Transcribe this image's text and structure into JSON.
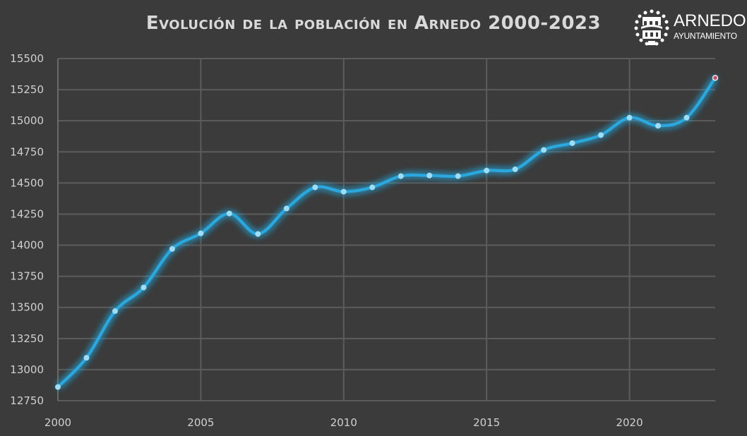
{
  "chart_data": {
    "type": "line",
    "title": "Evolución de la población en Arnedo 2000-2023",
    "xlabel": "",
    "ylabel": "",
    "x": [
      2000,
      2001,
      2002,
      2003,
      2004,
      2005,
      2006,
      2007,
      2008,
      2009,
      2010,
      2011,
      2012,
      2013,
      2014,
      2015,
      2016,
      2017,
      2018,
      2019,
      2020,
      2021,
      2022,
      2023
    ],
    "series": [
      {
        "values": [
          12860,
          13095,
          13470,
          13660,
          13970,
          14095,
          14255,
          14090,
          14295,
          14465,
          14430,
          14465,
          14555,
          14560,
          14555,
          14600,
          14610,
          14765,
          14820,
          14885,
          15025,
          14960,
          15025,
          15345
        ],
        "color": "#2aa9e0"
      }
    ],
    "xlim": [
      2000,
      2023
    ],
    "ylim": [
      12750,
      15500
    ],
    "xticks": [
      "2000",
      "2005",
      "2010",
      "2015",
      "2020"
    ],
    "yticks": [
      "12750",
      "13000",
      "13250",
      "13500",
      "13750",
      "14000",
      "14250",
      "14500",
      "14750",
      "15000",
      "15250",
      "15500"
    ],
    "grid": true,
    "smooth": true,
    "last_point_color": "#c0506a"
  },
  "logo": {
    "name": "ARNEDO",
    "subtitle": "AYUNTAMIENTO"
  },
  "colors": {
    "background": "#3b3b3b",
    "grid": "#5c5c5c",
    "text": "#d0d0d0"
  }
}
